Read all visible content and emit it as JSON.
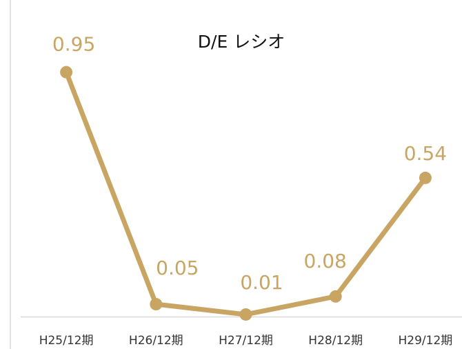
{
  "chart_data": {
    "type": "line",
    "title": "D/E レシオ",
    "categories": [
      "H25/12期",
      "H26/12期",
      "H27/12期",
      "H28/12期",
      "H29/12期"
    ],
    "series": [
      {
        "name": "D/E レシオ",
        "color": "#c9a563",
        "values": [
          0.95,
          0.05,
          0.01,
          0.08,
          0.54
        ]
      }
    ],
    "ylim": [
      0,
      1
    ]
  }
}
